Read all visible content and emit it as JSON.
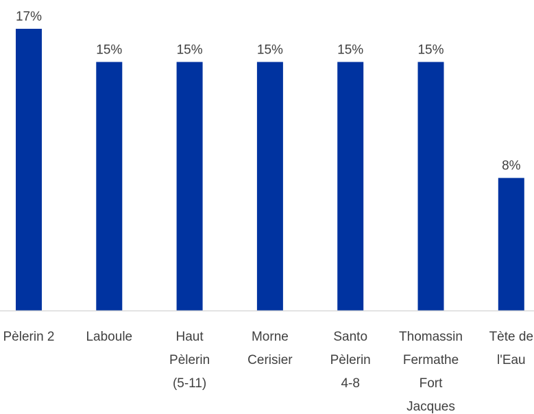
{
  "chart_data": {
    "type": "bar",
    "categories": [
      "Pèlerin 2",
      "Laboule",
      "Haut Pèlerin (5-11)",
      "Morne Cerisier",
      "Santo Pèlerin 4-8",
      "Thomassin Fermathe Fort Jacques",
      "Tète de l'Eau"
    ],
    "category_lines": [
      [
        "Pèlerin 2"
      ],
      [
        "Laboule"
      ],
      [
        "Haut",
        "Pèlerin",
        "(5-11)"
      ],
      [
        "Morne",
        "Cerisier"
      ],
      [
        "Santo",
        "Pèlerin",
        "4-8"
      ],
      [
        "Thomassin",
        "Fermathe",
        "Fort",
        "Jacques"
      ],
      [
        "Tète de",
        "l'Eau"
      ]
    ],
    "values": [
      17,
      15,
      15,
      15,
      15,
      15,
      8
    ],
    "data_labels": [
      "17%",
      "15%",
      "15%",
      "15%",
      "15%",
      "15%",
      "8%"
    ],
    "unit": "%",
    "title": "",
    "xlabel": "",
    "ylabel": "",
    "ylim": [
      0,
      17
    ],
    "grid": false,
    "legend": "none",
    "colors": {
      "bar": "#0033a0",
      "axis": "#d9d9d9",
      "text": "#404040"
    }
  }
}
